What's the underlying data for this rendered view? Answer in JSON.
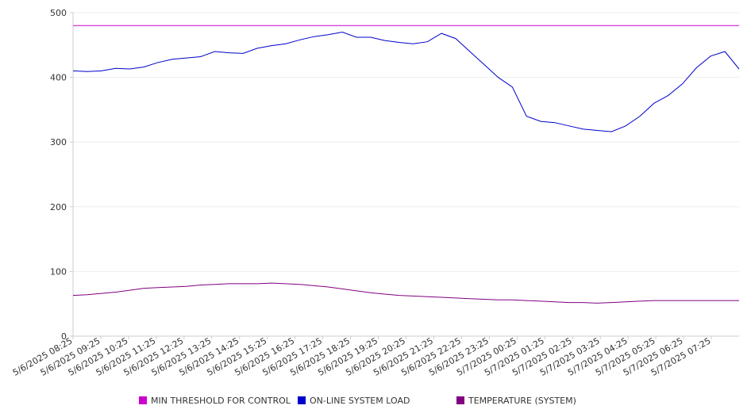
{
  "chart_data": {
    "type": "line",
    "title": "",
    "xlabel": "",
    "ylabel": "",
    "ylim": [
      0,
      500
    ],
    "yticks": [
      0,
      100,
      200,
      300,
      400,
      500
    ],
    "grid": true,
    "legend_position": "bottom",
    "x_tick_labels": [
      "5/6/2025 08:25",
      "5/6/2025 09:25",
      "5/6/2025 10:25",
      "5/6/2025 11:25",
      "5/6/2025 12:25",
      "5/6/2025 13:25",
      "5/6/2025 14:25",
      "5/6/2025 15:25",
      "5/6/2025 16:25",
      "5/6/2025 17:25",
      "5/6/2025 18:25",
      "5/6/2025 19:25",
      "5/6/2025 20:25",
      "5/6/2025 21:25",
      "5/6/2025 22:25",
      "5/6/2025 23:25",
      "5/7/2025 00:25",
      "5/7/2025 01:25",
      "5/7/2025 02:25",
      "5/7/2025 03:25",
      "5/7/2025 04:25",
      "5/7/2025 05:25",
      "5/7/2025 06:25",
      "5/7/2025 07:25"
    ],
    "x": [
      "5/6/2025 08:25",
      "5/6/2025 08:55",
      "5/6/2025 09:25",
      "5/6/2025 09:55",
      "5/6/2025 10:25",
      "5/6/2025 10:55",
      "5/6/2025 11:25",
      "5/6/2025 11:55",
      "5/6/2025 12:25",
      "5/6/2025 12:55",
      "5/6/2025 13:25",
      "5/6/2025 13:55",
      "5/6/2025 14:25",
      "5/6/2025 14:55",
      "5/6/2025 15:25",
      "5/6/2025 15:55",
      "5/6/2025 16:25",
      "5/6/2025 16:55",
      "5/6/2025 17:25",
      "5/6/2025 17:55",
      "5/6/2025 18:25",
      "5/6/2025 18:55",
      "5/6/2025 19:25",
      "5/6/2025 19:55",
      "5/6/2025 20:25",
      "5/6/2025 20:55",
      "5/6/2025 21:25",
      "5/6/2025 21:55",
      "5/6/2025 22:25",
      "5/6/2025 22:55",
      "5/6/2025 23:25",
      "5/6/2025 23:55",
      "5/7/2025 00:25",
      "5/7/2025 00:55",
      "5/7/2025 01:25",
      "5/7/2025 01:55",
      "5/7/2025 02:25",
      "5/7/2025 02:55",
      "5/7/2025 03:25",
      "5/7/2025 03:55",
      "5/7/2025 04:25",
      "5/7/2025 04:55",
      "5/7/2025 05:25",
      "5/7/2025 05:55",
      "5/7/2025 06:25",
      "5/7/2025 06:55",
      "5/7/2025 07:25",
      "5/7/2025 07:55"
    ],
    "series": [
      {
        "name": "MIN THRESHOLD FOR CONTROL",
        "color": "#cc00cc",
        "values": [
          480,
          480,
          480,
          480,
          480,
          480,
          480,
          480,
          480,
          480,
          480,
          480,
          480,
          480,
          480,
          480,
          480,
          480,
          480,
          480,
          480,
          480,
          480,
          480,
          480,
          480,
          480,
          480,
          480,
          480,
          480,
          480,
          480,
          480,
          480,
          480,
          480,
          480,
          480,
          480,
          480,
          480,
          480,
          480,
          480,
          480,
          480,
          480
        ]
      },
      {
        "name": "ON-LINE SYSTEM LOAD",
        "color": "#0000cc",
        "values": [
          410,
          409,
          410,
          414,
          413,
          416,
          423,
          428,
          430,
          432,
          440,
          438,
          437,
          445,
          449,
          452,
          458,
          463,
          466,
          470,
          462,
          462,
          457,
          454,
          452,
          455,
          468,
          460,
          440,
          420,
          400,
          385,
          340,
          332,
          330,
          325,
          320,
          318,
          316,
          325,
          340,
          360,
          372,
          390,
          415,
          433,
          440,
          413
        ]
      },
      {
        "name": "TEMPERATURE (SYSTEM)",
        "color": "#800080",
        "values": [
          63,
          64,
          66,
          68,
          71,
          74,
          75,
          76,
          77,
          79,
          80,
          81,
          81,
          81,
          82,
          81,
          80,
          78,
          76,
          73,
          70,
          67,
          65,
          63,
          62,
          61,
          60,
          59,
          58,
          57,
          56,
          56,
          55,
          54,
          53,
          52,
          52,
          51,
          52,
          53,
          54,
          55,
          55,
          55,
          55,
          55,
          55,
          55
        ]
      }
    ]
  }
}
